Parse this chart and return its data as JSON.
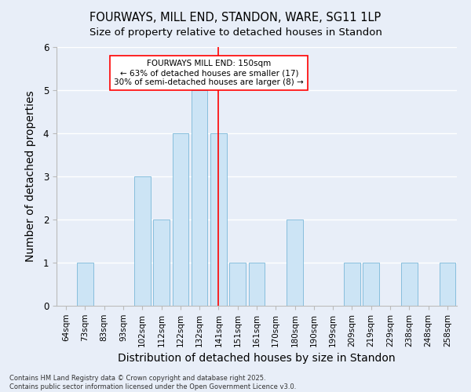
{
  "title": "FOURWAYS, MILL END, STANDON, WARE, SG11 1LP",
  "subtitle": "Size of property relative to detached houses in Standon",
  "xlabel": "Distribution of detached houses by size in Standon",
  "ylabel": "Number of detached properties",
  "footnote": "Contains HM Land Registry data © Crown copyright and database right 2025.\nContains public sector information licensed under the Open Government Licence v3.0.",
  "categories": [
    "64sqm",
    "73sqm",
    "83sqm",
    "93sqm",
    "102sqm",
    "112sqm",
    "122sqm",
    "132sqm",
    "141sqm",
    "151sqm",
    "161sqm",
    "170sqm",
    "180sqm",
    "190sqm",
    "199sqm",
    "209sqm",
    "219sqm",
    "229sqm",
    "238sqm",
    "248sqm",
    "258sqm"
  ],
  "values": [
    0,
    1,
    0,
    0,
    3,
    2,
    4,
    5,
    4,
    1,
    1,
    0,
    2,
    0,
    0,
    1,
    1,
    0,
    1,
    0,
    1
  ],
  "bar_color": "#cce4f5",
  "bar_edgecolor": "#7ab8d9",
  "vline_x": 8,
  "vline_color": "red",
  "annotation_text": "FOURWAYS MILL END: 150sqm\n← 63% of detached houses are smaller (17)\n30% of semi-detached houses are larger (8) →",
  "annotation_box_color": "white",
  "annotation_box_edgecolor": "red",
  "ylim": [
    0,
    6
  ],
  "yticks": [
    0,
    1,
    2,
    3,
    4,
    5,
    6
  ],
  "background_color": "#e8eef8",
  "grid_color": "#ffffff",
  "title_fontsize": 10.5,
  "subtitle_fontsize": 9.5,
  "axis_label_fontsize": 9,
  "tick_fontsize": 7.5,
  "annot_fontsize": 7.5,
  "footnote_fontsize": 6
}
